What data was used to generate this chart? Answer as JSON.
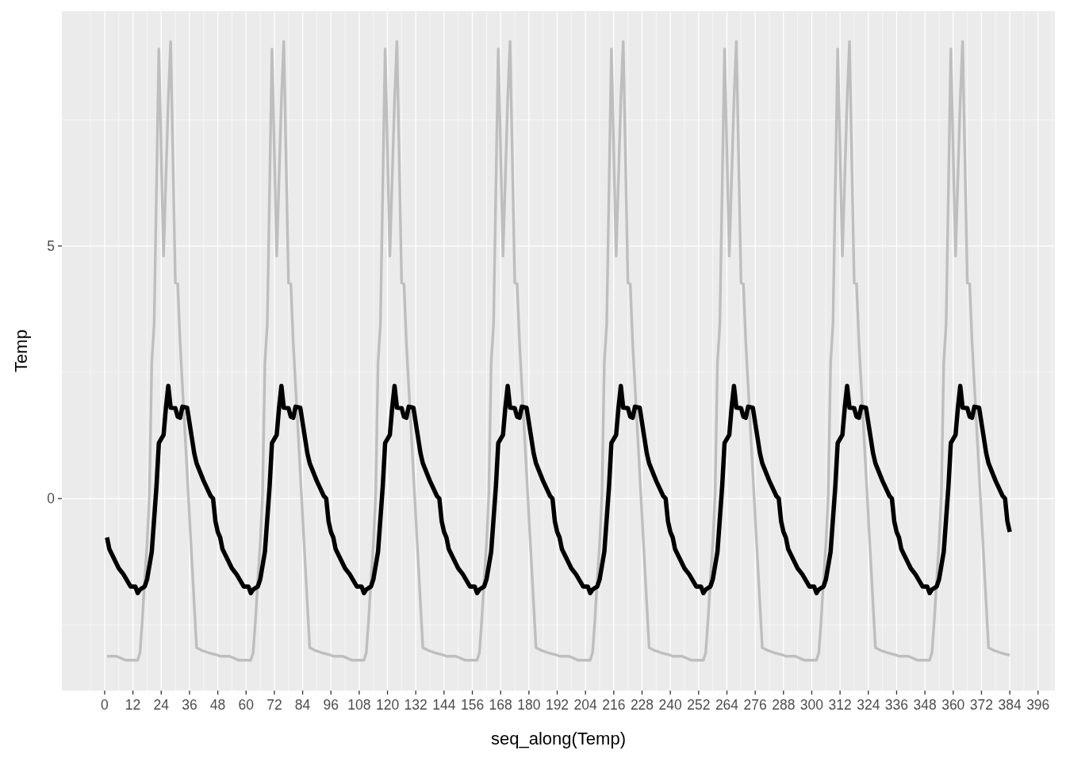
{
  "chart_data": {
    "type": "line",
    "xlabel": "seq_along(Temp)",
    "ylabel": "Temp",
    "xlim": [
      -18.15,
      403.15
    ],
    "ylim": [
      -3.8,
      9.65
    ],
    "xticks": [
      0,
      12,
      24,
      36,
      48,
      60,
      72,
      84,
      96,
      108,
      120,
      132,
      144,
      156,
      168,
      180,
      192,
      204,
      216,
      228,
      240,
      252,
      264,
      276,
      288,
      300,
      312,
      324,
      336,
      348,
      360,
      372,
      384,
      396
    ],
    "yticks": [
      0,
      5
    ],
    "grid": true,
    "line_style": "solid",
    "marker": "none",
    "series": [
      {
        "color": "#bebebe",
        "x": [
          1,
          5,
          9,
          14,
          15,
          16,
          17,
          18,
          19,
          20,
          21,
          23,
          25,
          27,
          28,
          30,
          31,
          32,
          39,
          41,
          44,
          48,
          49,
          53,
          57,
          62,
          63,
          64,
          65,
          66,
          67,
          68,
          69,
          71,
          73,
          75,
          76,
          78,
          79,
          80,
          87,
          89,
          92,
          96,
          97,
          101,
          105,
          110,
          111,
          112,
          113,
          114,
          115,
          116,
          117,
          119,
          121,
          123,
          124,
          126,
          127,
          128,
          135,
          137,
          140,
          144,
          145,
          149,
          153,
          158,
          159,
          160,
          161,
          162,
          163,
          164,
          165,
          167,
          169,
          171,
          172,
          174,
          175,
          176,
          183,
          185,
          188,
          192,
          193,
          197,
          201,
          206,
          207,
          208,
          209,
          210,
          211,
          212,
          213,
          215,
          217,
          219,
          220,
          222,
          223,
          224,
          231,
          233,
          236,
          240,
          241,
          245,
          249,
          254,
          255,
          256,
          257,
          258,
          259,
          260,
          261,
          263,
          265,
          267,
          268,
          270,
          271,
          272,
          279,
          281,
          284,
          288,
          289,
          293,
          297,
          302,
          303,
          304,
          305,
          306,
          307,
          308,
          309,
          311,
          313,
          315,
          316,
          318,
          319,
          320,
          327,
          329,
          332,
          336,
          337,
          341,
          345,
          350,
          351,
          352,
          353,
          354,
          355,
          356,
          357,
          359,
          361,
          363,
          364,
          366,
          367,
          368,
          375,
          377,
          380,
          384
        ],
        "values": [
          -3.12,
          -3.12,
          -3.2,
          -3.2,
          -3.05,
          -2.4,
          -1.6,
          -0.9,
          0.1,
          2.7,
          3.45,
          8.9,
          4.8,
          7.9,
          9.05,
          4.27,
          4.25,
          3.1,
          -2.95,
          -3.0,
          -3.05,
          -3.1,
          -3.12,
          -3.12,
          -3.2,
          -3.2,
          -3.05,
          -2.4,
          -1.6,
          -0.9,
          0.1,
          2.7,
          3.45,
          8.9,
          4.8,
          7.9,
          9.05,
          4.27,
          4.25,
          3.1,
          -2.95,
          -3.0,
          -3.05,
          -3.1,
          -3.12,
          -3.12,
          -3.2,
          -3.2,
          -3.05,
          -2.4,
          -1.6,
          -0.9,
          0.1,
          2.7,
          3.45,
          8.9,
          4.8,
          7.9,
          9.05,
          4.27,
          4.25,
          3.1,
          -2.95,
          -3.0,
          -3.05,
          -3.1,
          -3.12,
          -3.12,
          -3.2,
          -3.2,
          -3.05,
          -2.4,
          -1.6,
          -0.9,
          0.1,
          2.7,
          3.45,
          8.9,
          4.8,
          7.9,
          9.05,
          4.27,
          4.25,
          3.1,
          -2.95,
          -3.0,
          -3.05,
          -3.1,
          -3.12,
          -3.12,
          -3.2,
          -3.2,
          -3.05,
          -2.4,
          -1.6,
          -0.9,
          0.1,
          2.7,
          3.45,
          8.9,
          4.8,
          7.9,
          9.05,
          4.27,
          4.25,
          3.1,
          -2.95,
          -3.0,
          -3.05,
          -3.1,
          -3.12,
          -3.12,
          -3.2,
          -3.2,
          -3.05,
          -2.4,
          -1.6,
          -0.9,
          0.1,
          2.7,
          3.45,
          8.9,
          4.8,
          7.9,
          9.05,
          4.27,
          4.25,
          3.1,
          -2.95,
          -3.0,
          -3.05,
          -3.1,
          -3.12,
          -3.12,
          -3.2,
          -3.2,
          -3.05,
          -2.4,
          -1.6,
          -0.9,
          0.1,
          2.7,
          3.45,
          8.9,
          4.8,
          7.9,
          9.05,
          4.27,
          4.25,
          3.1,
          -2.95,
          -3.0,
          -3.05,
          -3.1,
          -3.12,
          -3.12,
          -3.2,
          -3.2,
          -3.05,
          -2.4,
          -1.6,
          -0.9,
          0.1,
          2.7,
          3.45,
          8.9,
          4.8,
          7.9,
          9.05,
          4.27,
          4.25,
          3.1,
          -2.95,
          -3.0,
          -3.05,
          -3.1
        ]
      },
      {
        "color": "#000000",
        "x": [
          1,
          2,
          6,
          8,
          11,
          13,
          14,
          15,
          17,
          18,
          20,
          22,
          23,
          25,
          26,
          27,
          28,
          30,
          31,
          32,
          33,
          35,
          36,
          38,
          39,
          42,
          45,
          46,
          47,
          48,
          49,
          50,
          54,
          56,
          59,
          61,
          62,
          63,
          65,
          66,
          68,
          70,
          71,
          73,
          74,
          75,
          76,
          78,
          79,
          80,
          81,
          83,
          84,
          86,
          87,
          90,
          93,
          94,
          95,
          96,
          97,
          98,
          102,
          104,
          107,
          109,
          110,
          111,
          113,
          114,
          116,
          118,
          119,
          121,
          122,
          123,
          124,
          126,
          127,
          128,
          129,
          131,
          132,
          134,
          135,
          138,
          141,
          142,
          143,
          144,
          145,
          146,
          150,
          152,
          155,
          157,
          158,
          159,
          161,
          162,
          164,
          166,
          167,
          169,
          170,
          171,
          172,
          174,
          175,
          176,
          177,
          179,
          180,
          182,
          183,
          186,
          189,
          190,
          191,
          192,
          193,
          194,
          198,
          200,
          203,
          205,
          206,
          207,
          209,
          210,
          212,
          214,
          215,
          217,
          218,
          219,
          220,
          222,
          223,
          224,
          225,
          227,
          228,
          230,
          231,
          234,
          237,
          238,
          239,
          240,
          241,
          242,
          246,
          248,
          251,
          253,
          254,
          255,
          257,
          258,
          260,
          262,
          263,
          265,
          266,
          267,
          268,
          270,
          271,
          272,
          273,
          275,
          276,
          278,
          279,
          282,
          285,
          286,
          287,
          288,
          289,
          290,
          294,
          296,
          299,
          301,
          302,
          303,
          305,
          306,
          308,
          310,
          311,
          313,
          314,
          315,
          316,
          318,
          319,
          320,
          321,
          323,
          324,
          326,
          327,
          330,
          333,
          334,
          335,
          336,
          337,
          338,
          342,
          344,
          347,
          349,
          350,
          351,
          353,
          354,
          356,
          358,
          359,
          361,
          362,
          363,
          364,
          366,
          367,
          368,
          369,
          371,
          372,
          374,
          375,
          378,
          381,
          382,
          383,
          384
        ],
        "values": [
          -0.77,
          -1.0,
          -1.38,
          -1.5,
          -1.74,
          -1.74,
          -1.87,
          -1.8,
          -1.74,
          -1.6,
          -1.05,
          0.25,
          1.1,
          1.26,
          1.8,
          2.23,
          1.8,
          1.79,
          1.62,
          1.6,
          1.82,
          1.8,
          1.5,
          0.9,
          0.7,
          0.35,
          0.05,
          0,
          -0.45,
          -0.66,
          -0.77,
          -1.0,
          -1.38,
          -1.5,
          -1.74,
          -1.74,
          -1.87,
          -1.8,
          -1.74,
          -1.6,
          -1.05,
          0.25,
          1.1,
          1.26,
          1.8,
          2.23,
          1.8,
          1.79,
          1.62,
          1.6,
          1.82,
          1.8,
          1.5,
          0.9,
          0.7,
          0.35,
          0.05,
          0,
          -0.45,
          -0.66,
          -0.77,
          -1.0,
          -1.38,
          -1.5,
          -1.74,
          -1.74,
          -1.87,
          -1.8,
          -1.74,
          -1.6,
          -1.05,
          0.25,
          1.1,
          1.26,
          1.8,
          2.23,
          1.8,
          1.79,
          1.62,
          1.6,
          1.82,
          1.8,
          1.5,
          0.9,
          0.7,
          0.35,
          0.05,
          0,
          -0.45,
          -0.66,
          -0.77,
          -1.0,
          -1.38,
          -1.5,
          -1.74,
          -1.74,
          -1.87,
          -1.8,
          -1.74,
          -1.6,
          -1.05,
          0.25,
          1.1,
          1.26,
          1.8,
          2.23,
          1.8,
          1.79,
          1.62,
          1.6,
          1.82,
          1.8,
          1.5,
          0.9,
          0.7,
          0.35,
          0.05,
          0,
          -0.45,
          -0.66,
          -0.77,
          -1.0,
          -1.38,
          -1.5,
          -1.74,
          -1.74,
          -1.87,
          -1.8,
          -1.74,
          -1.6,
          -1.05,
          0.25,
          1.1,
          1.26,
          1.8,
          2.23,
          1.8,
          1.79,
          1.62,
          1.6,
          1.82,
          1.8,
          1.5,
          0.9,
          0.7,
          0.35,
          0.05,
          0,
          -0.45,
          -0.66,
          -0.77,
          -1.0,
          -1.38,
          -1.5,
          -1.74,
          -1.74,
          -1.87,
          -1.8,
          -1.74,
          -1.6,
          -1.05,
          0.25,
          1.1,
          1.26,
          1.8,
          2.23,
          1.8,
          1.79,
          1.62,
          1.6,
          1.82,
          1.8,
          1.5,
          0.9,
          0.7,
          0.35,
          0.05,
          0,
          -0.45,
          -0.66,
          -0.77,
          -1.0,
          -1.38,
          -1.5,
          -1.74,
          -1.74,
          -1.87,
          -1.8,
          -1.74,
          -1.6,
          -1.05,
          0.25,
          1.1,
          1.26,
          1.8,
          2.23,
          1.8,
          1.79,
          1.62,
          1.6,
          1.82,
          1.8,
          1.5,
          0.9,
          0.7,
          0.35,
          0.05,
          0,
          -0.45,
          -0.66,
          -0.77,
          -1.0,
          -1.38,
          -1.5,
          -1.74,
          -1.74,
          -1.87,
          -1.8,
          -1.74,
          -1.6,
          -1.05,
          0.25,
          1.1,
          1.26,
          1.8,
          2.23,
          1.8,
          1.79,
          1.62,
          1.6,
          1.82,
          1.8,
          1.5,
          0.9,
          0.7,
          0.35,
          0.05,
          0,
          -0.45,
          -0.66
        ]
      }
    ]
  }
}
